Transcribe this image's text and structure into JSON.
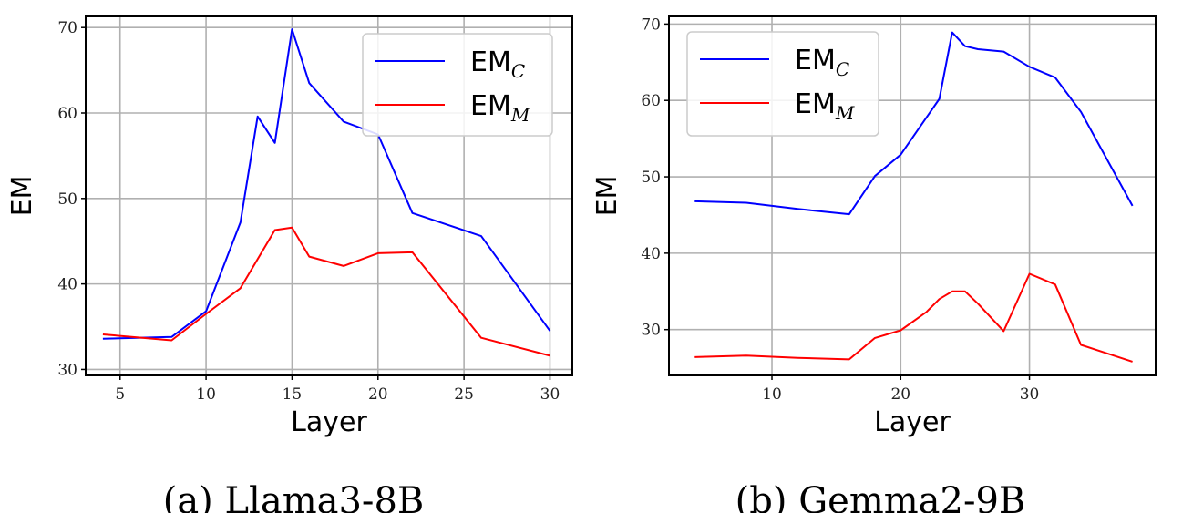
{
  "chart_data": [
    {
      "type": "line",
      "caption": "(a) Llama3-8B",
      "xlabel": "Layer",
      "ylabel": "EM",
      "xlim": [
        3,
        31.3
      ],
      "ylim": [
        29.3,
        71.3
      ],
      "xticks": [
        5,
        10,
        15,
        20,
        25,
        30
      ],
      "yticks": [
        30,
        40,
        50,
        60,
        70
      ],
      "grid": true,
      "legend_position": "top-right",
      "series": [
        {
          "name": "EM",
          "subscript": "C",
          "color": "#0000ff",
          "x": [
            4,
            8,
            10,
            12,
            13,
            14,
            15,
            16,
            18,
            20,
            22,
            26,
            30
          ],
          "y": [
            33.6,
            33.8,
            36.8,
            47.2,
            59.6,
            56.5,
            69.8,
            63.5,
            59.0,
            57.5,
            48.3,
            45.6,
            34.5
          ]
        },
        {
          "name": "EM",
          "subscript": "M",
          "color": "#ff0000",
          "x": [
            4,
            8,
            10,
            12,
            14,
            15,
            16,
            18,
            20,
            22,
            26,
            30
          ],
          "y": [
            34.1,
            33.4,
            36.5,
            39.5,
            46.3,
            46.6,
            43.2,
            42.1,
            43.6,
            43.7,
            33.7,
            31.6
          ]
        }
      ]
    },
    {
      "type": "line",
      "caption": "(b) Gemma2-9B",
      "xlabel": "Layer",
      "ylabel": "EM",
      "xlim": [
        2,
        39.8
      ],
      "ylim": [
        24,
        71
      ],
      "xticks": [
        10,
        20,
        30
      ],
      "yticks": [
        30,
        40,
        50,
        60,
        70
      ],
      "grid": true,
      "legend_position": "top-left",
      "series": [
        {
          "name": "EM",
          "subscript": "C",
          "color": "#0000ff",
          "x": [
            4,
            8,
            12,
            16,
            18,
            20,
            23,
            24,
            25,
            26,
            28,
            30,
            32,
            34,
            38
          ],
          "y": [
            46.8,
            46.6,
            45.8,
            45.1,
            50.1,
            52.9,
            60.2,
            68.9,
            67.1,
            66.7,
            66.4,
            64.4,
            63.0,
            58.5,
            46.2
          ]
        },
        {
          "name": "EM",
          "subscript": "M",
          "color": "#ff0000",
          "x": [
            4,
            8,
            12,
            16,
            18,
            20,
            22,
            23,
            24,
            25,
            26,
            28,
            30,
            32,
            34,
            38
          ],
          "y": [
            26.4,
            26.6,
            26.3,
            26.1,
            28.9,
            29.9,
            32.3,
            34.0,
            35.0,
            35.0,
            33.4,
            29.8,
            37.3,
            35.9,
            28.0,
            25.8
          ]
        }
      ]
    }
  ]
}
